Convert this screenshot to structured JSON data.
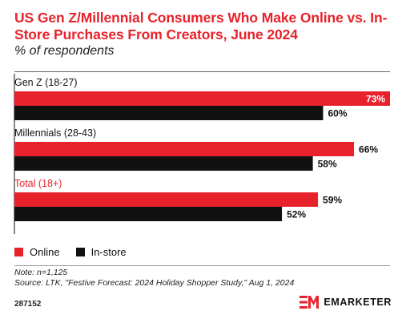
{
  "header": {
    "title": "US Gen Z/Millennial Consumers Who Make Online vs. In-Store Purchases From Creators, June 2024",
    "subtitle": "% of respondents"
  },
  "footer": {
    "note": "Note: n=1,125",
    "source": "Source: LTK, \"Festive Forecast: 2024 Holiday Shopper Study,\" Aug 1, 2024",
    "chart_id": "287152",
    "brand": "EMARKETER"
  },
  "colors": {
    "online": "#e8222b",
    "instore": "#111111",
    "total_label": "#e8222b"
  },
  "chart_data": {
    "type": "bar",
    "orientation": "horizontal",
    "categories": [
      "Gen Z (18-27)",
      "Millennials (28-43)",
      "Total (18+)"
    ],
    "series": [
      {
        "name": "Online",
        "values": [
          73,
          66,
          59
        ],
        "labels": [
          "73%",
          "66%",
          "59%"
        ]
      },
      {
        "name": "In-store",
        "values": [
          60,
          58,
          52
        ],
        "labels": [
          "60%",
          "58%",
          "52%"
        ]
      }
    ],
    "xlim": [
      0,
      73
    ],
    "legend": "bottom-left",
    "grid": false
  }
}
